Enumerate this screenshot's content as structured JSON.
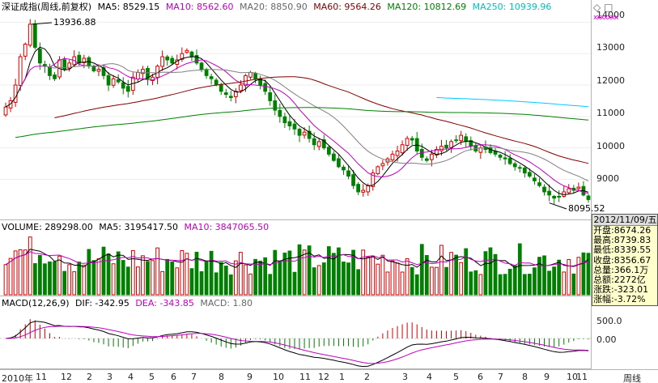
{
  "price_header": {
    "title": "深证成指(周线,前复权)",
    "ma5": "MA5: 8529.15",
    "ma10": "MA10: 8562.60",
    "ma20": "MA20: 8850.90",
    "ma60": "MA60: 9564.26",
    "ma120": "MA120: 10812.69",
    "ma250": "MA250: 10939.96"
  },
  "volume_header": {
    "title": "VOLUME: 289298.00",
    "ma5": "MA5: 3195417.50",
    "ma10": "MA10: 3847065.50"
  },
  "macd_header": {
    "title": "MACD(12,26,9)",
    "dif": "DIF: -342.95",
    "dea": "DEA: -343.85",
    "macd": "MACD: 1.80"
  },
  "price_axis_ticks": [
    "14000",
    "13000",
    "12000",
    "11000",
    "10000",
    "9000"
  ],
  "macd_axis_ticks": [
    "500.0",
    "0.00"
  ],
  "callouts": {
    "high": "13936.88",
    "low": "8095.52"
  },
  "x_axis": {
    "labels": [
      "2010年",
      "11",
      "12",
      "2",
      "3",
      "4",
      "5",
      "6",
      "7",
      "8",
      "9",
      "10",
      "11",
      "12",
      "1",
      "2",
      "3",
      "4",
      "5",
      "6",
      "7",
      "8",
      "9",
      "10",
      "11"
    ],
    "period_label": "周线"
  },
  "info_panel": {
    "date": "2012/11/09/五",
    "rows": [
      {
        "label": "开盘",
        "value": "8674.26"
      },
      {
        "label": "最高",
        "value": "8739.83"
      },
      {
        "label": "最低",
        "value": "8339.55"
      },
      {
        "label": "收盘",
        "value": "8356.67"
      },
      {
        "label": "总量",
        "value": "366.1万"
      },
      {
        "label": "总额",
        "value": "2272亿"
      },
      {
        "label": "涨跌",
        "value": "-323.01"
      },
      {
        "label": "涨幅",
        "value": "-3.72%"
      }
    ]
  },
  "toolbar": {
    "icons": [
      "diamond-icon",
      "square-icon"
    ],
    "marker_text": "xxxxxxx"
  },
  "colors": {
    "up": "#d40000",
    "down": "#008000",
    "ma5": "#000000",
    "ma10": "#c000c0",
    "ma20": "#808080",
    "ma60": "#800000",
    "ma120": "#008000",
    "ma250": "#00c8ff"
  },
  "chart_data": {
    "type": "candlestick",
    "title": "深证成指(周线,前复权)",
    "ylim": [
      7800,
      14500
    ],
    "closes": [
      11300,
      11500,
      12000,
      12900,
      13300,
      13936,
      13200,
      12700,
      12600,
      12300,
      12200,
      12800,
      12500,
      12700,
      12900,
      12700,
      12850,
      12600,
      12450,
      12500,
      12300,
      12000,
      12200,
      12100,
      11900,
      11800,
      12250,
      12400,
      12500,
      12200,
      12250,
      12600,
      12900,
      12800,
      12700,
      12800,
      13000,
      13100,
      12900,
      12700,
      12500,
      12300,
      12200,
      12000,
      11800,
      11700,
      11600,
      11800,
      12000,
      12300,
      12400,
      12200,
      12000,
      11800,
      11500,
      11200,
      11000,
      10800,
      10700,
      10600,
      10400,
      10500,
      10300,
      10100,
      10200,
      10000,
      9800,
      9600,
      9400,
      9300,
      9100,
      8800,
      8600,
      8650,
      8800,
      9200,
      9400,
      9500,
      9650,
      9800,
      9900,
      10100,
      10300,
      10250,
      9900,
      9700,
      9600,
      9800,
      9950,
      10050,
      10000,
      10200,
      10250,
      10400,
      10200,
      10050,
      9900,
      10000,
      9950,
      9850,
      9800,
      9700,
      9650,
      9500,
      9400,
      9350,
      9200,
      9100,
      8950,
      8800,
      8600,
      8500,
      8400,
      8450,
      8600,
      8700,
      8650,
      8750,
      8500,
      8357
    ]
  }
}
